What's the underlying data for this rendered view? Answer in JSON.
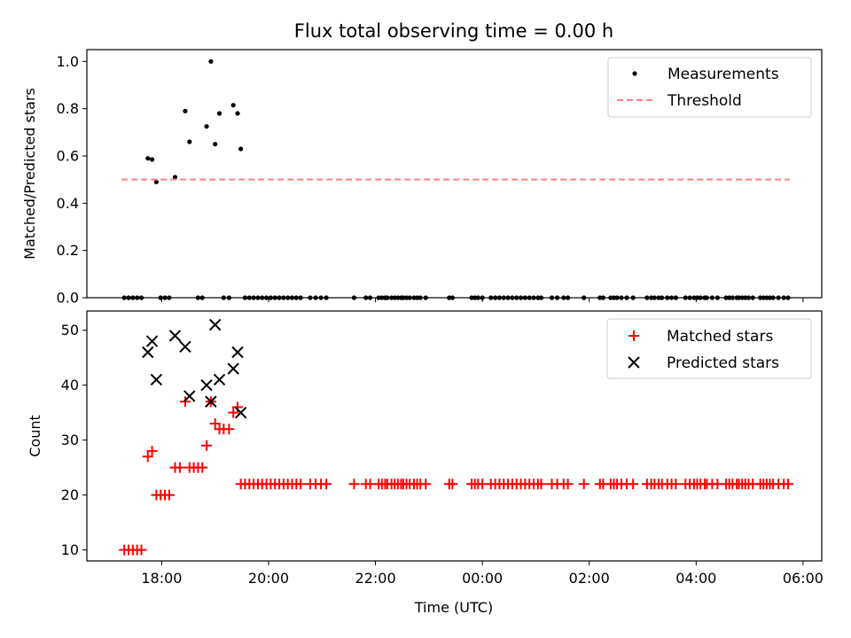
{
  "chart_data": [
    {
      "type": "scatter",
      "title": "Flux total observing time = 0.00 h",
      "xlabel": "",
      "ylabel": "Matched/Predicted stars",
      "ylim": [
        0,
        1.05
      ],
      "yticks": [
        0.0,
        0.2,
        0.4,
        0.6,
        0.8,
        1.0
      ],
      "ytick_labels": [
        "0.0",
        "0.2",
        "0.4",
        "0.6",
        "0.8",
        "1.0"
      ],
      "xlim": [
        16.6,
        30.35
      ],
      "xticks": [
        18,
        20,
        22,
        24,
        26,
        28,
        30
      ],
      "legend_position": "top-right",
      "legend": [
        "Measurements",
        "Threshold"
      ],
      "series": [
        {
          "name": "Measurements",
          "marker": "dot",
          "color": "#000000",
          "x": [
            17.3,
            17.38,
            17.46,
            17.54,
            17.62,
            17.74,
            17.82,
            17.9,
            17.98,
            18.06,
            18.14,
            18.25,
            18.44,
            18.52,
            18.68,
            18.76,
            18.84,
            18.92,
            19.0,
            19.08,
            19.16,
            19.26,
            19.34,
            19.42,
            19.48,
            19.56,
            19.64,
            19.72,
            19.8,
            19.88,
            19.96,
            20.04,
            20.12,
            20.2,
            20.28,
            20.36,
            20.44,
            20.52,
            20.6,
            20.78,
            20.88,
            20.98,
            21.08,
            21.6,
            21.82,
            21.9,
            22.06,
            22.12,
            22.18,
            22.22,
            22.3,
            22.36,
            22.42,
            22.48,
            22.52,
            22.58,
            22.64,
            22.72,
            22.78,
            22.84,
            22.94,
            23.38,
            23.44,
            23.8,
            23.86,
            23.92,
            24.0,
            24.16,
            24.24,
            24.32,
            24.4,
            24.48,
            24.56,
            24.64,
            24.72,
            24.8,
            24.88,
            24.96,
            25.04,
            25.1,
            25.3,
            25.4,
            25.52,
            25.6,
            25.9,
            26.2,
            26.26,
            26.4,
            26.46,
            26.52,
            26.6,
            26.7,
            26.82,
            27.08,
            27.16,
            27.22,
            27.3,
            27.36,
            27.46,
            27.54,
            27.62,
            27.8,
            27.88,
            27.96,
            28.02,
            28.08,
            28.16,
            28.2,
            28.3,
            28.4,
            28.56,
            28.62,
            28.68,
            28.76,
            28.8,
            28.86,
            28.92,
            28.98,
            29.06,
            29.2,
            29.26,
            29.32,
            29.38,
            29.44,
            29.54,
            29.64,
            29.72
          ],
          "y": [
            0,
            0,
            0,
            0,
            0,
            0.59,
            0.585,
            0.49,
            0,
            0,
            0,
            0.51,
            0.79,
            0.66,
            0,
            0,
            0.725,
            1.0,
            0.65,
            0.78,
            0,
            0,
            0.815,
            0.78,
            0.63,
            0,
            0,
            0,
            0,
            0,
            0,
            0,
            0,
            0,
            0,
            0,
            0,
            0,
            0,
            0,
            0,
            0,
            0,
            0,
            0,
            0,
            0,
            0,
            0,
            0,
            0,
            0,
            0,
            0,
            0,
            0,
            0,
            0,
            0,
            0,
            0,
            0,
            0,
            0,
            0,
            0,
            0,
            0,
            0,
            0,
            0,
            0,
            0,
            0,
            0,
            0,
            0,
            0,
            0,
            0,
            0,
            0,
            0,
            0,
            0,
            0,
            0,
            0,
            0,
            0,
            0,
            0,
            0,
            0,
            0,
            0,
            0,
            0,
            0,
            0,
            0,
            0,
            0,
            0,
            0,
            0,
            0,
            0,
            0,
            0,
            0,
            0,
            0,
            0,
            0,
            0,
            0,
            0,
            0,
            0,
            0,
            0,
            0,
            0,
            0,
            0,
            0
          ]
        },
        {
          "name": "Threshold",
          "marker": "dashed-line",
          "color": "#ff7f7f",
          "x": [
            17.25,
            29.75
          ],
          "y": [
            0.5,
            0.5
          ]
        }
      ]
    },
    {
      "type": "scatter",
      "title": "",
      "xlabel": "Time (UTC)",
      "ylabel": "Count",
      "ylim": [
        8,
        53.5
      ],
      "yticks": [
        10,
        20,
        30,
        40,
        50
      ],
      "ytick_labels": [
        "10",
        "20",
        "30",
        "40",
        "50"
      ],
      "xlim": [
        16.6,
        30.35
      ],
      "xticks": [
        18,
        20,
        22,
        24,
        26,
        28,
        30
      ],
      "xtick_labels": [
        "18:00",
        "20:00",
        "22:00",
        "00:00",
        "02:00",
        "04:00",
        "06:00"
      ],
      "legend_position": "top-right",
      "legend": [
        "Matched stars",
        "Predicted stars"
      ],
      "series": [
        {
          "name": "Matched stars",
          "marker": "plus",
          "color": "#ff0000",
          "x": [
            17.3,
            17.38,
            17.46,
            17.54,
            17.62,
            17.74,
            17.82,
            17.9,
            17.98,
            18.06,
            18.14,
            18.25,
            18.34,
            18.44,
            18.52,
            18.6,
            18.68,
            18.76,
            18.84,
            18.92,
            19.0,
            19.08,
            19.16,
            19.26,
            19.34,
            19.42,
            19.48,
            19.56,
            19.64,
            19.72,
            19.8,
            19.88,
            19.96,
            20.04,
            20.12,
            20.2,
            20.28,
            20.36,
            20.44,
            20.52,
            20.6,
            20.78,
            20.88,
            20.98,
            21.08,
            21.6,
            21.82,
            21.9,
            22.06,
            22.12,
            22.18,
            22.22,
            22.3,
            22.36,
            22.42,
            22.48,
            22.52,
            22.58,
            22.64,
            22.72,
            22.78,
            22.84,
            22.94,
            23.38,
            23.44,
            23.8,
            23.86,
            23.92,
            24.0,
            24.16,
            24.24,
            24.32,
            24.4,
            24.48,
            24.56,
            24.64,
            24.72,
            24.8,
            24.88,
            24.96,
            25.04,
            25.1,
            25.3,
            25.4,
            25.52,
            25.6,
            25.9,
            26.2,
            26.26,
            26.4,
            26.46,
            26.52,
            26.6,
            26.7,
            26.82,
            27.08,
            27.16,
            27.22,
            27.3,
            27.36,
            27.46,
            27.54,
            27.62,
            27.8,
            27.88,
            27.96,
            28.02,
            28.08,
            28.16,
            28.2,
            28.3,
            28.4,
            28.56,
            28.62,
            28.68,
            28.76,
            28.8,
            28.86,
            28.92,
            28.98,
            29.06,
            29.2,
            29.26,
            29.32,
            29.38,
            29.44,
            29.54,
            29.64,
            29.72
          ],
          "y": [
            10,
            10,
            10,
            10,
            10,
            27,
            28,
            20,
            20,
            20,
            20,
            25,
            25,
            37,
            25,
            25,
            25,
            25,
            29,
            37,
            33,
            32,
            32,
            32,
            35,
            36,
            22,
            22,
            22,
            22,
            22,
            22,
            22,
            22,
            22,
            22,
            22,
            22,
            22,
            22,
            22,
            22,
            22,
            22,
            22,
            22,
            22,
            22,
            22,
            22,
            22,
            22,
            22,
            22,
            22,
            22,
            22,
            22,
            22,
            22,
            22,
            22,
            22,
            22,
            22,
            22,
            22,
            22,
            22,
            22,
            22,
            22,
            22,
            22,
            22,
            22,
            22,
            22,
            22,
            22,
            22,
            22,
            22,
            22,
            22,
            22,
            22,
            22,
            22,
            22,
            22,
            22,
            22,
            22,
            22,
            22,
            22,
            22,
            22,
            22,
            22,
            22,
            22,
            22,
            22,
            22,
            22,
            22,
            22,
            22,
            22,
            22,
            22,
            22,
            22,
            22,
            22,
            22,
            22,
            22,
            22,
            22,
            22,
            22,
            22,
            22,
            22,
            22,
            22
          ]
        },
        {
          "name": "Predicted stars",
          "marker": "x",
          "color": "#000000",
          "x": [
            17.74,
            17.82,
            17.9,
            18.25,
            18.44,
            18.52,
            18.84,
            18.92,
            19.0,
            19.08,
            19.34,
            19.42,
            19.48
          ],
          "y": [
            46,
            48,
            41,
            49,
            47,
            38,
            40,
            37,
            51,
            41,
            43,
            46,
            35
          ]
        }
      ]
    }
  ]
}
